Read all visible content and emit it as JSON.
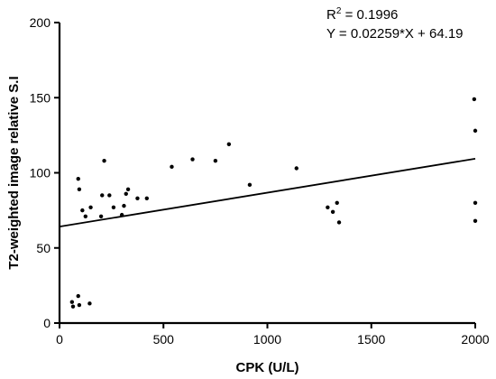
{
  "chart_data": {
    "type": "scatter",
    "title": "",
    "xlabel": "CPK (U/L)",
    "ylabel": "T2-weighted image relative S.I",
    "xlim": [
      0,
      2000
    ],
    "ylim": [
      0,
      200
    ],
    "xticks": [
      0,
      500,
      1000,
      1500,
      2000
    ],
    "yticks": [
      0,
      50,
      100,
      150,
      200
    ],
    "grid": false,
    "points": [
      {
        "x": 60,
        "y": 14
      },
      {
        "x": 65,
        "y": 11
      },
      {
        "x": 90,
        "y": 18
      },
      {
        "x": 95,
        "y": 12
      },
      {
        "x": 145,
        "y": 13
      },
      {
        "x": 90,
        "y": 96
      },
      {
        "x": 95,
        "y": 89
      },
      {
        "x": 110,
        "y": 75
      },
      {
        "x": 125,
        "y": 71
      },
      {
        "x": 150,
        "y": 77
      },
      {
        "x": 200,
        "y": 71
      },
      {
        "x": 205,
        "y": 85
      },
      {
        "x": 215,
        "y": 108
      },
      {
        "x": 240,
        "y": 85
      },
      {
        "x": 260,
        "y": 77
      },
      {
        "x": 300,
        "y": 72
      },
      {
        "x": 310,
        "y": 78
      },
      {
        "x": 320,
        "y": 86
      },
      {
        "x": 330,
        "y": 89
      },
      {
        "x": 375,
        "y": 83
      },
      {
        "x": 420,
        "y": 83
      },
      {
        "x": 540,
        "y": 104
      },
      {
        "x": 640,
        "y": 109
      },
      {
        "x": 750,
        "y": 108
      },
      {
        "x": 815,
        "y": 119
      },
      {
        "x": 915,
        "y": 92
      },
      {
        "x": 1140,
        "y": 103
      },
      {
        "x": 1290,
        "y": 77
      },
      {
        "x": 1315,
        "y": 74
      },
      {
        "x": 1335,
        "y": 80
      },
      {
        "x": 1345,
        "y": 67
      },
      {
        "x": 1995,
        "y": 149
      },
      {
        "x": 2000,
        "y": 128
      },
      {
        "x": 2000,
        "y": 80
      },
      {
        "x": 2000,
        "y": 68
      }
    ],
    "fit": {
      "slope": 0.02259,
      "intercept": 64.19,
      "x_range": [
        0,
        2000
      ]
    },
    "annotations": {
      "r2_base": "R",
      "r2_sup": "2",
      "r2_value": " = 0.1996",
      "equation": "Y = 0.02259*X + 64.19"
    }
  }
}
